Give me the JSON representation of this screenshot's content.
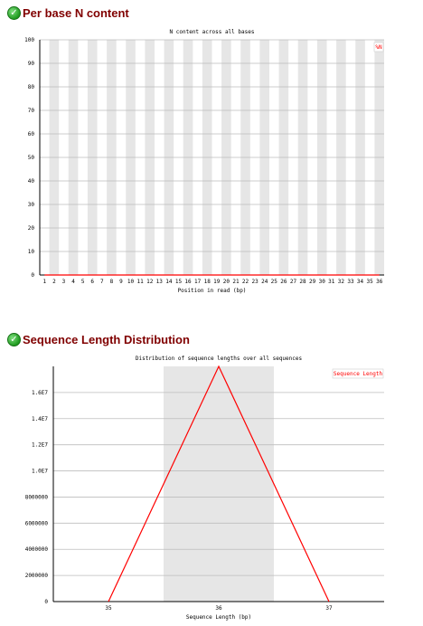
{
  "sections": [
    {
      "title": "Per base N content",
      "status_icon": "pass-tick-icon"
    },
    {
      "title": "Sequence Length Distribution",
      "status_icon": "pass-tick-icon"
    }
  ],
  "chart_data": [
    {
      "type": "line",
      "title": "N content across all bases",
      "xlabel": "Position in read (bp)",
      "ylabel": "",
      "categories": [
        "1",
        "2",
        "3",
        "4",
        "5",
        "6",
        "7",
        "8",
        "9",
        "10",
        "11",
        "12",
        "13",
        "14",
        "15",
        "16",
        "17",
        "18",
        "19",
        "20",
        "21",
        "22",
        "23",
        "24",
        "25",
        "26",
        "27",
        "28",
        "29",
        "30",
        "31",
        "32",
        "33",
        "34",
        "35",
        "36"
      ],
      "ylim": [
        0,
        100
      ],
      "yticks": [
        "0",
        "10",
        "20",
        "30",
        "40",
        "50",
        "60",
        "70",
        "80",
        "90",
        "100"
      ],
      "series": [
        {
          "name": "%N",
          "color": "#ff0000",
          "values": [
            0,
            0,
            0,
            0,
            0,
            0,
            0,
            0,
            0,
            0,
            0,
            0,
            0,
            0,
            0,
            0,
            0,
            0,
            0,
            0,
            0,
            0,
            0,
            0,
            0,
            0,
            0,
            0,
            0,
            0,
            0,
            0,
            0,
            0,
            0,
            0
          ]
        }
      ],
      "legend_position": "top-right",
      "band_color": "#e6e6e6",
      "grid": true
    },
    {
      "type": "line",
      "title": "Distribution of sequence lengths over all sequences",
      "xlabel": "Sequence Length (bp)",
      "ylabel": "",
      "categories": [
        "35",
        "36",
        "37"
      ],
      "ylim": [
        0,
        18000000
      ],
      "yticks": [
        "0",
        "2000000",
        "4000000",
        "6000000",
        "8000000",
        "1.0E7",
        "1.2E7",
        "1.4E7",
        "1.6E7"
      ],
      "series": [
        {
          "name": "Sequence Length",
          "color": "#ff0000",
          "values": [
            0,
            18000000,
            0
          ]
        }
      ],
      "legend_position": "top-right",
      "band_color": "#e6e6e6",
      "grid": true
    }
  ]
}
